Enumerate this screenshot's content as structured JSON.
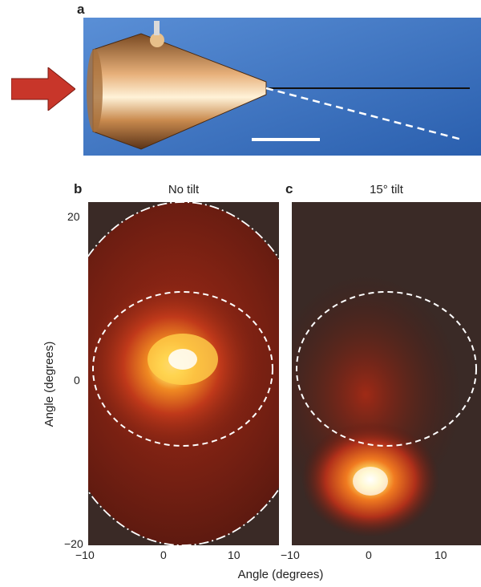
{
  "panels": {
    "a": {
      "letter": "a"
    },
    "b": {
      "letter": "b",
      "title": "No tilt",
      "yticks": [
        "20",
        "0",
        "−20"
      ],
      "xticks": [
        "−10",
        "0",
        "10"
      ],
      "ylabel": "Angle (degrees)"
    },
    "c": {
      "letter": "c",
      "title": "15° tilt",
      "xticks": [
        "−10",
        "0",
        "10"
      ]
    }
  },
  "xlabel": "Angle (degrees)",
  "colors": {
    "arrow": "#c8362a",
    "photo_bg": "#3b73c2",
    "heatmap_bg": "#3a2a26",
    "dark_red": "#6a1c12",
    "hot": "#ffe36a"
  }
}
